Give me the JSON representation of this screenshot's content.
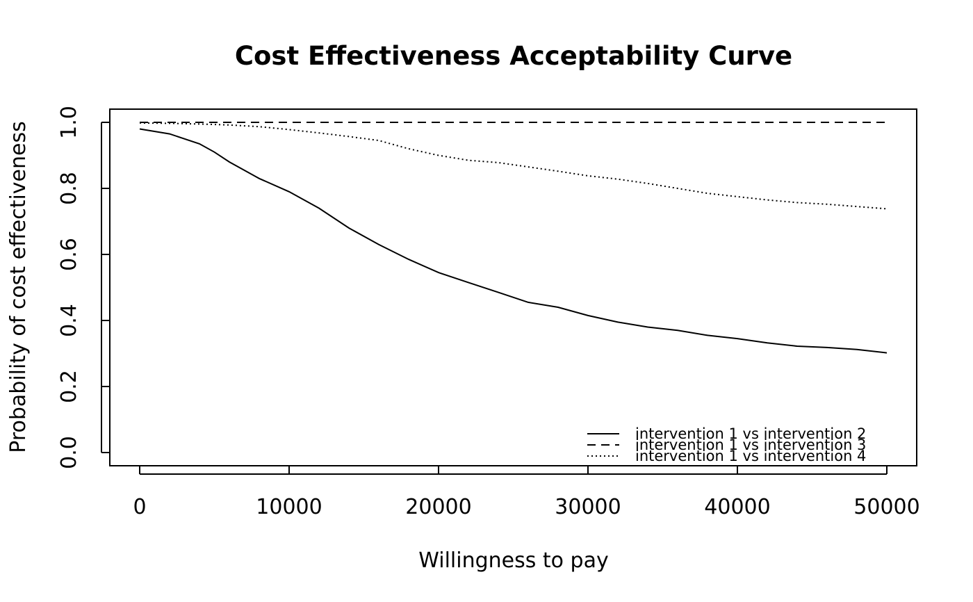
{
  "chart_data": {
    "type": "line",
    "title": "Cost Effectiveness Acceptability Curve",
    "xlabel": "Willingness to pay",
    "ylabel": "Probability of cost effectiveness",
    "xlim": [
      0,
      50000
    ],
    "ylim": [
      0,
      1
    ],
    "x_ticks": [
      0,
      10000,
      20000,
      30000,
      40000,
      50000
    ],
    "y_ticks": [
      0.0,
      0.2,
      0.4,
      0.6,
      0.8,
      1.0
    ],
    "x_tick_labels": [
      "0",
      "10000",
      "20000",
      "30000",
      "40000",
      "50000"
    ],
    "y_tick_labels": [
      "0.0",
      "0.2",
      "0.4",
      "0.6",
      "0.8",
      "1.0"
    ],
    "grid": false,
    "legend_position": "bottom-right",
    "series": [
      {
        "name": "intervention 1 vs intervention 2",
        "line_style": "solid",
        "color": "#000000",
        "x": [
          0,
          2000,
          4000,
          5000,
          6000,
          8000,
          10000,
          12000,
          14000,
          16000,
          18000,
          20000,
          22000,
          24000,
          26000,
          28000,
          30000,
          32000,
          34000,
          36000,
          38000,
          40000,
          42000,
          44000,
          46000,
          48000,
          50000
        ],
        "y": [
          0.98,
          0.965,
          0.935,
          0.91,
          0.88,
          0.83,
          0.79,
          0.74,
          0.68,
          0.63,
          0.585,
          0.545,
          0.515,
          0.485,
          0.455,
          0.44,
          0.415,
          0.395,
          0.38,
          0.37,
          0.355,
          0.345,
          0.332,
          0.322,
          0.318,
          0.312,
          0.302
        ]
      },
      {
        "name": "intervention 1 vs intervention 3",
        "line_style": "dashed",
        "color": "#000000",
        "x": [
          0,
          50000
        ],
        "y": [
          1.0,
          1.0
        ]
      },
      {
        "name": "intervention 1 vs intervention 4",
        "line_style": "dotted",
        "color": "#000000",
        "x": [
          0,
          2000,
          4000,
          6000,
          8000,
          10000,
          12000,
          14000,
          16000,
          18000,
          20000,
          22000,
          24000,
          26000,
          28000,
          30000,
          32000,
          34000,
          36000,
          38000,
          40000,
          42000,
          44000,
          46000,
          48000,
          50000
        ],
        "y": [
          0.998,
          0.997,
          0.995,
          0.992,
          0.987,
          0.978,
          0.968,
          0.957,
          0.945,
          0.92,
          0.9,
          0.885,
          0.878,
          0.865,
          0.852,
          0.838,
          0.828,
          0.815,
          0.8,
          0.785,
          0.775,
          0.765,
          0.757,
          0.752,
          0.745,
          0.738
        ]
      }
    ]
  }
}
